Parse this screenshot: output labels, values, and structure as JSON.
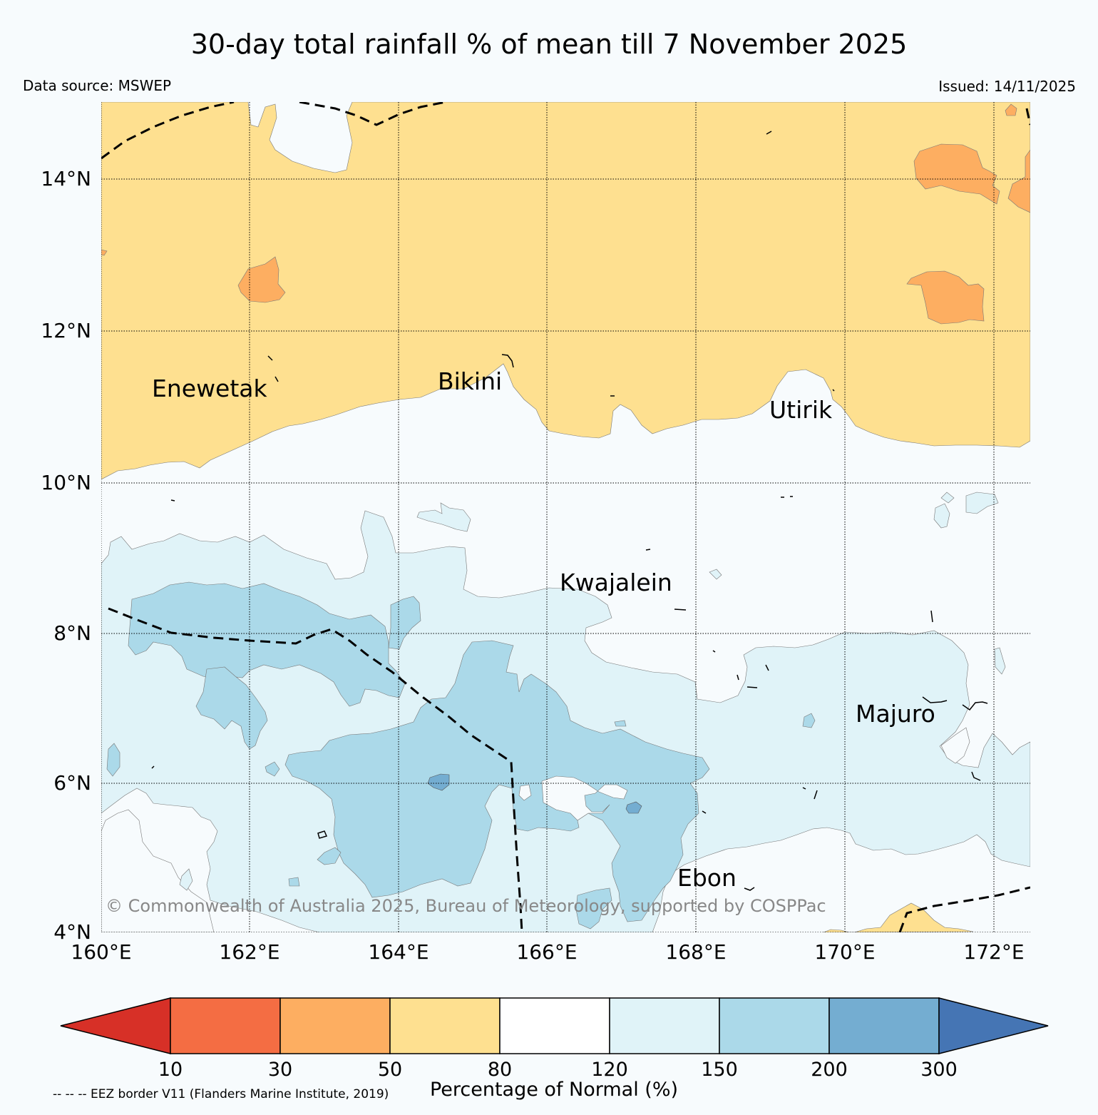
{
  "title": "30-day total rainfall % of mean till 7 November 2025",
  "data_source": "Data source: MSWEP",
  "issued": "Issued: 14/11/2025",
  "copyright": "© Commonwealth of Australia 2025, Bureau of Meteorology, supported by COSPPac",
  "lat_ticks": [
    "14°N",
    "12°N",
    "10°N",
    "8°N",
    "6°N",
    "4°N"
  ],
  "lon_ticks": [
    "160°E",
    "162°E",
    "164°E",
    "166°E",
    "168°E",
    "170°E",
    "172°E"
  ],
  "places": {
    "enewetak": "Enewetak",
    "bikini": "Bikini",
    "utirik": "Utirik",
    "kwajalein": "Kwajalein",
    "majuro": "Majuro",
    "ebon": "Ebon"
  },
  "colorbar": {
    "title": "Percentage of Normal (%)",
    "ticks": [
      "10",
      "30",
      "50",
      "80",
      "120",
      "150",
      "200",
      "300"
    ],
    "colors": {
      "below_10": "#d73027",
      "10_30": "#f46d43",
      "30_50": "#fdae61",
      "50_80": "#fee090",
      "80_120": "#ffffff",
      "120_150": "#e0f3f8",
      "150_200": "#abd9e9",
      "200_300": "#74add1",
      "above_300": "#4575b4"
    }
  },
  "eez_note": "-- -- -- EEZ border V11 (Flanders Marine Institute, 2019)"
}
